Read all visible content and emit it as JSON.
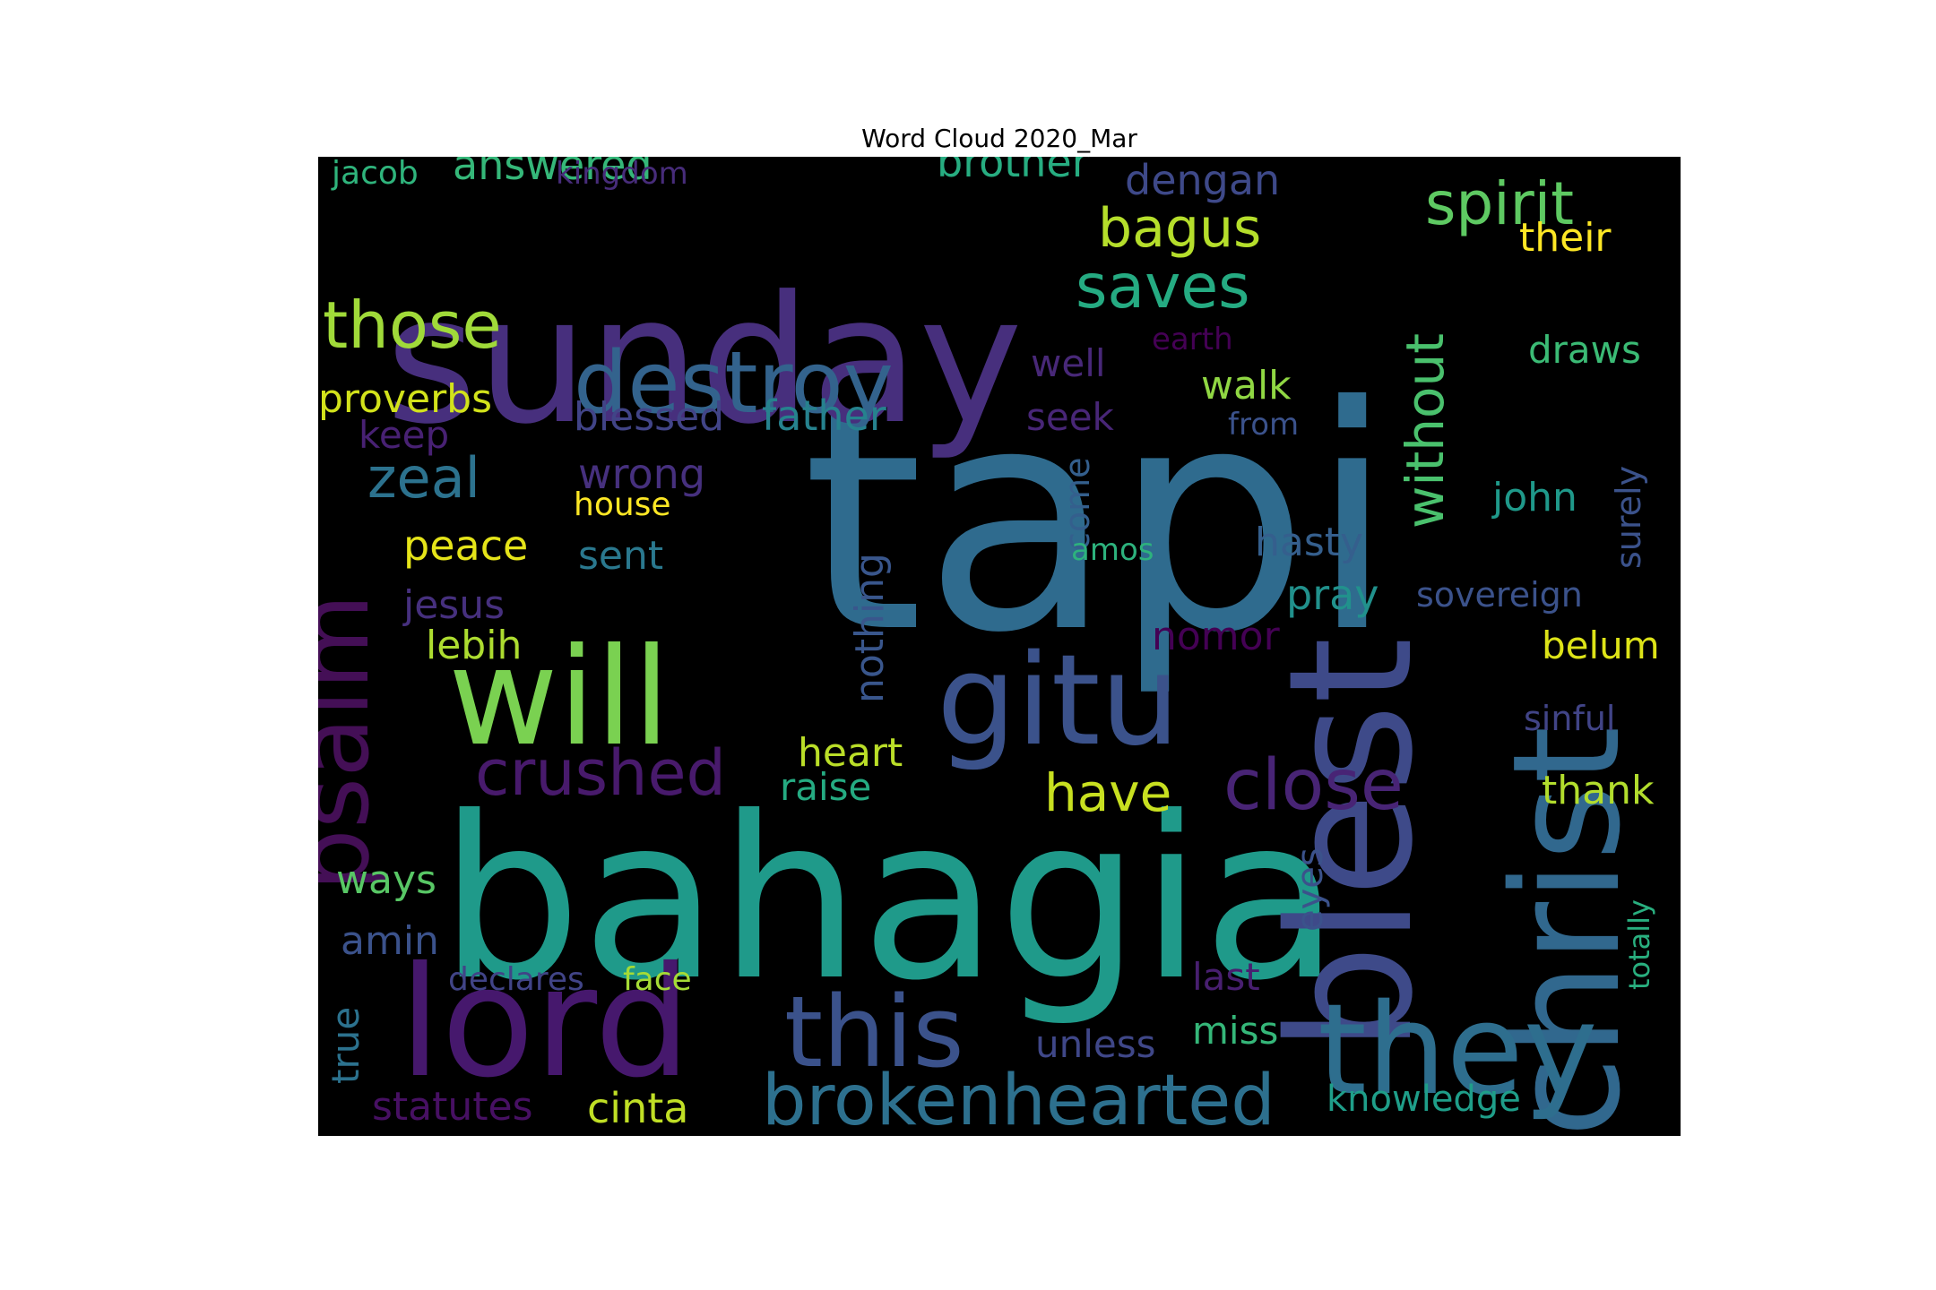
{
  "chart_data": {
    "type": "wordcloud",
    "title": "Word Cloud 2020_Mar",
    "background": "#000000",
    "colormap": "viridis",
    "words": [
      {
        "text": "tapi",
        "color": "#2f6b8e"
      },
      {
        "text": "bahagia",
        "color": "#1f9a8a"
      },
      {
        "text": "sunday",
        "color": "#472f7d"
      },
      {
        "text": "blest",
        "color": "#3e4a89"
      },
      {
        "text": "christ",
        "color": "#31688e"
      },
      {
        "text": "will",
        "color": "#7ad151"
      },
      {
        "text": "gitu",
        "color": "#3b528b"
      },
      {
        "text": "lord",
        "color": "#46186d"
      },
      {
        "text": "they",
        "color": "#2e6e8e"
      },
      {
        "text": "destroy",
        "color": "#33638d"
      },
      {
        "text": "this",
        "color": "#3b528b"
      },
      {
        "text": "psalm",
        "color": "#440f56"
      },
      {
        "text": "brokenhearted",
        "color": "#2d708e"
      },
      {
        "text": "close",
        "color": "#482475"
      },
      {
        "text": "crushed",
        "color": "#481a6c"
      },
      {
        "text": "those",
        "color": "#a0da39"
      },
      {
        "text": "saves",
        "color": "#25ab82"
      },
      {
        "text": "spirit",
        "color": "#5ec962"
      },
      {
        "text": "bagus",
        "color": "#b5de2b"
      },
      {
        "text": "without",
        "color": "#4ac16d"
      },
      {
        "text": "have",
        "color": "#c8e020"
      },
      {
        "text": "zeal",
        "color": "#2c728e"
      },
      {
        "text": "answered",
        "color": "#35b779"
      },
      {
        "text": "brother",
        "color": "#27ad81"
      },
      {
        "text": "dengan",
        "color": "#3e4989"
      },
      {
        "text": "their",
        "color": "#fde725"
      },
      {
        "text": "proverbs",
        "color": "#d2e21b"
      },
      {
        "text": "father",
        "color": "#26828e"
      },
      {
        "text": "blessed",
        "color": "#414487"
      },
      {
        "text": "walk",
        "color": "#90d743"
      },
      {
        "text": "draws",
        "color": "#3bbb75"
      },
      {
        "text": "seek",
        "color": "#482677"
      },
      {
        "text": "well",
        "color": "#482878"
      },
      {
        "text": "wrong",
        "color": "#46307e"
      },
      {
        "text": "nothing",
        "color": "#39568c"
      },
      {
        "text": "come",
        "color": "#345f8d"
      },
      {
        "text": "hasty",
        "color": "#355f8d"
      },
      {
        "text": "john",
        "color": "#1f998a"
      },
      {
        "text": "surely",
        "color": "#3b528b"
      },
      {
        "text": "peace",
        "color": "#e5e419"
      },
      {
        "text": "house",
        "color": "#fde725"
      },
      {
        "text": "sent",
        "color": "#2a788e"
      },
      {
        "text": "jesus",
        "color": "#46307e"
      },
      {
        "text": "lebih",
        "color": "#addc30"
      },
      {
        "text": "pray",
        "color": "#21918c"
      },
      {
        "text": "sovereign",
        "color": "#3b528b"
      },
      {
        "text": "nomor",
        "color": "#440154"
      },
      {
        "text": "belum",
        "color": "#dde318"
      },
      {
        "text": "sinful",
        "color": "#414487"
      },
      {
        "text": "heart",
        "color": "#bade28"
      },
      {
        "text": "raise",
        "color": "#25ab82"
      },
      {
        "text": "thank",
        "color": "#b2dd2d"
      },
      {
        "text": "ways",
        "color": "#58c765"
      },
      {
        "text": "amin",
        "color": "#3b528b"
      },
      {
        "text": "eyes",
        "color": "#3b528b"
      },
      {
        "text": "totally",
        "color": "#29af7f"
      },
      {
        "text": "true",
        "color": "#2c728e"
      },
      {
        "text": "declares",
        "color": "#414487"
      },
      {
        "text": "face",
        "color": "#a5db36"
      },
      {
        "text": "last",
        "color": "#481f70"
      },
      {
        "text": "miss",
        "color": "#35b779"
      },
      {
        "text": "unless",
        "color": "#3f4788"
      },
      {
        "text": "statutes",
        "color": "#471063"
      },
      {
        "text": "cinta",
        "color": "#c0df25"
      },
      {
        "text": "knowledge",
        "color": "#1f9e89"
      },
      {
        "text": "jacob",
        "color": "#2fb47c"
      },
      {
        "text": "kingdom",
        "color": "#472c7a"
      },
      {
        "text": "earth",
        "color": "#440154"
      },
      {
        "text": "keep",
        "color": "#482173"
      },
      {
        "text": "from",
        "color": "#3b528b"
      },
      {
        "text": "amos",
        "color": "#2db27d"
      }
    ]
  }
}
